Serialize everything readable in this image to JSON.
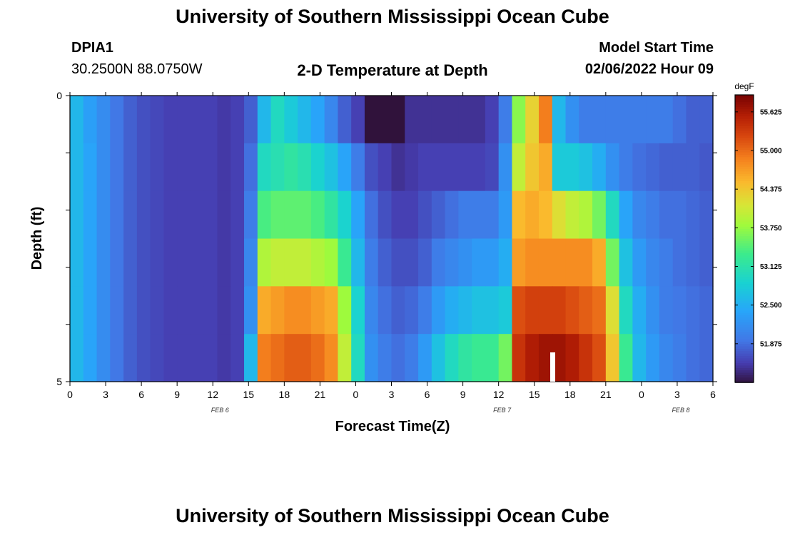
{
  "header": {
    "title": "University of Southern Mississippi Ocean Cube",
    "station": "DPIA1",
    "coords": "30.2500N  88.0750W",
    "chart_title": "2-D Temperature at Depth",
    "model_label": "Model Start Time",
    "model_time": "02/06/2022 Hour 09"
  },
  "footer": {
    "title": "University of Southern Mississippi Ocean Cube"
  },
  "chart_data": {
    "type": "heatmap",
    "title": "2-D Temperature at Depth",
    "xlabel": "Forecast Time(Z)",
    "ylabel": "Depth (ft)",
    "x_ticks": [
      "0",
      "3",
      "6",
      "9",
      "12",
      "15",
      "18",
      "21",
      "0",
      "3",
      "6",
      "9",
      "12",
      "15",
      "18",
      "21",
      "0",
      "3",
      "6"
    ],
    "date_labels": [
      "FEB 6",
      "FEB 7",
      "FEB 8"
    ],
    "y_ticks": [
      "0",
      "5"
    ],
    "ylim": [
      0,
      5
    ],
    "colorbar": {
      "unit": "degF",
      "ticks": [
        "55.625",
        "55.000",
        "54.375",
        "53.750",
        "53.125",
        "52.500",
        "51.875"
      ],
      "min": 51.25,
      "max": 55.9
    },
    "depths": [
      0,
      1,
      2,
      3,
      4,
      5
    ],
    "values": [
      [
        52.6,
        52.35,
        52.15,
        51.95,
        51.8,
        51.7,
        51.65,
        51.6,
        51.6,
        51.6,
        51.6,
        51.55,
        51.6,
        51.8,
        52.6,
        53.0,
        52.8,
        52.6,
        52.4,
        52.1,
        51.8,
        51.6,
        51.25,
        51.0,
        51.2,
        51.5,
        51.5,
        51.5,
        51.5,
        51.5,
        51.5,
        51.6,
        52.0,
        53.7,
        54.3,
        54.9,
        52.6,
        52.2,
        52.0,
        52.0,
        52.0,
        52.0,
        52.0,
        52.0,
        52.0,
        51.9,
        51.8,
        51.8
      ],
      [
        52.6,
        52.4,
        52.15,
        51.95,
        51.8,
        51.7,
        51.65,
        51.6,
        51.6,
        51.6,
        51.6,
        51.55,
        51.6,
        51.9,
        53.0,
        53.1,
        53.2,
        53.1,
        52.9,
        52.7,
        52.4,
        52.0,
        51.7,
        51.6,
        51.5,
        51.55,
        51.6,
        51.6,
        51.6,
        51.6,
        51.6,
        51.65,
        52.2,
        54.0,
        54.4,
        54.6,
        52.8,
        52.8,
        52.7,
        52.5,
        52.2,
        52.0,
        51.9,
        51.85,
        51.8,
        51.8,
        51.8,
        51.75
      ],
      [
        52.6,
        52.4,
        52.15,
        51.95,
        51.8,
        51.7,
        51.65,
        51.6,
        51.6,
        51.6,
        51.6,
        51.55,
        51.6,
        52.0,
        53.4,
        53.5,
        53.5,
        53.5,
        53.4,
        53.2,
        52.9,
        52.4,
        51.9,
        51.7,
        51.6,
        51.6,
        51.7,
        51.8,
        51.9,
        52.0,
        52.0,
        52.0,
        52.3,
        54.5,
        54.6,
        54.5,
        54.2,
        54.0,
        53.9,
        53.6,
        53.0,
        52.4,
        52.1,
        52.0,
        51.9,
        51.9,
        51.85,
        51.8
      ],
      [
        52.6,
        52.4,
        52.15,
        51.95,
        51.8,
        51.7,
        51.65,
        51.6,
        51.6,
        51.6,
        51.6,
        51.55,
        51.6,
        52.1,
        53.9,
        54.0,
        54.0,
        54.0,
        53.9,
        53.8,
        53.3,
        52.6,
        52.0,
        51.8,
        51.7,
        51.7,
        51.8,
        52.0,
        52.1,
        52.2,
        52.3,
        52.3,
        52.5,
        54.7,
        54.8,
        54.8,
        54.8,
        54.8,
        54.8,
        54.6,
        53.6,
        52.7,
        52.3,
        52.1,
        52.0,
        51.9,
        51.85,
        51.8
      ],
      [
        52.6,
        52.4,
        52.15,
        51.95,
        51.8,
        51.7,
        51.65,
        51.6,
        51.6,
        51.6,
        51.6,
        51.55,
        51.6,
        52.2,
        54.6,
        54.7,
        54.8,
        54.8,
        54.7,
        54.6,
        53.8,
        52.9,
        52.1,
        51.9,
        51.8,
        51.85,
        52.0,
        52.3,
        52.5,
        52.6,
        52.7,
        52.7,
        52.8,
        55.2,
        55.3,
        55.3,
        55.3,
        55.2,
        55.1,
        55.0,
        54.2,
        53.0,
        52.5,
        52.2,
        52.0,
        51.95,
        51.9,
        51.85
      ],
      [
        52.6,
        52.4,
        52.15,
        51.95,
        51.8,
        51.7,
        51.65,
        51.6,
        51.6,
        51.6,
        51.6,
        51.55,
        51.6,
        52.6,
        54.9,
        55.0,
        55.1,
        55.1,
        55.0,
        54.8,
        54.0,
        53.0,
        52.2,
        52.0,
        51.9,
        52.0,
        52.3,
        52.7,
        53.0,
        53.2,
        53.3,
        53.3,
        53.6,
        55.4,
        55.6,
        55.7,
        55.7,
        55.6,
        55.4,
        55.2,
        54.4,
        53.3,
        52.6,
        52.3,
        52.1,
        52.0,
        51.9,
        51.85
      ]
    ]
  }
}
